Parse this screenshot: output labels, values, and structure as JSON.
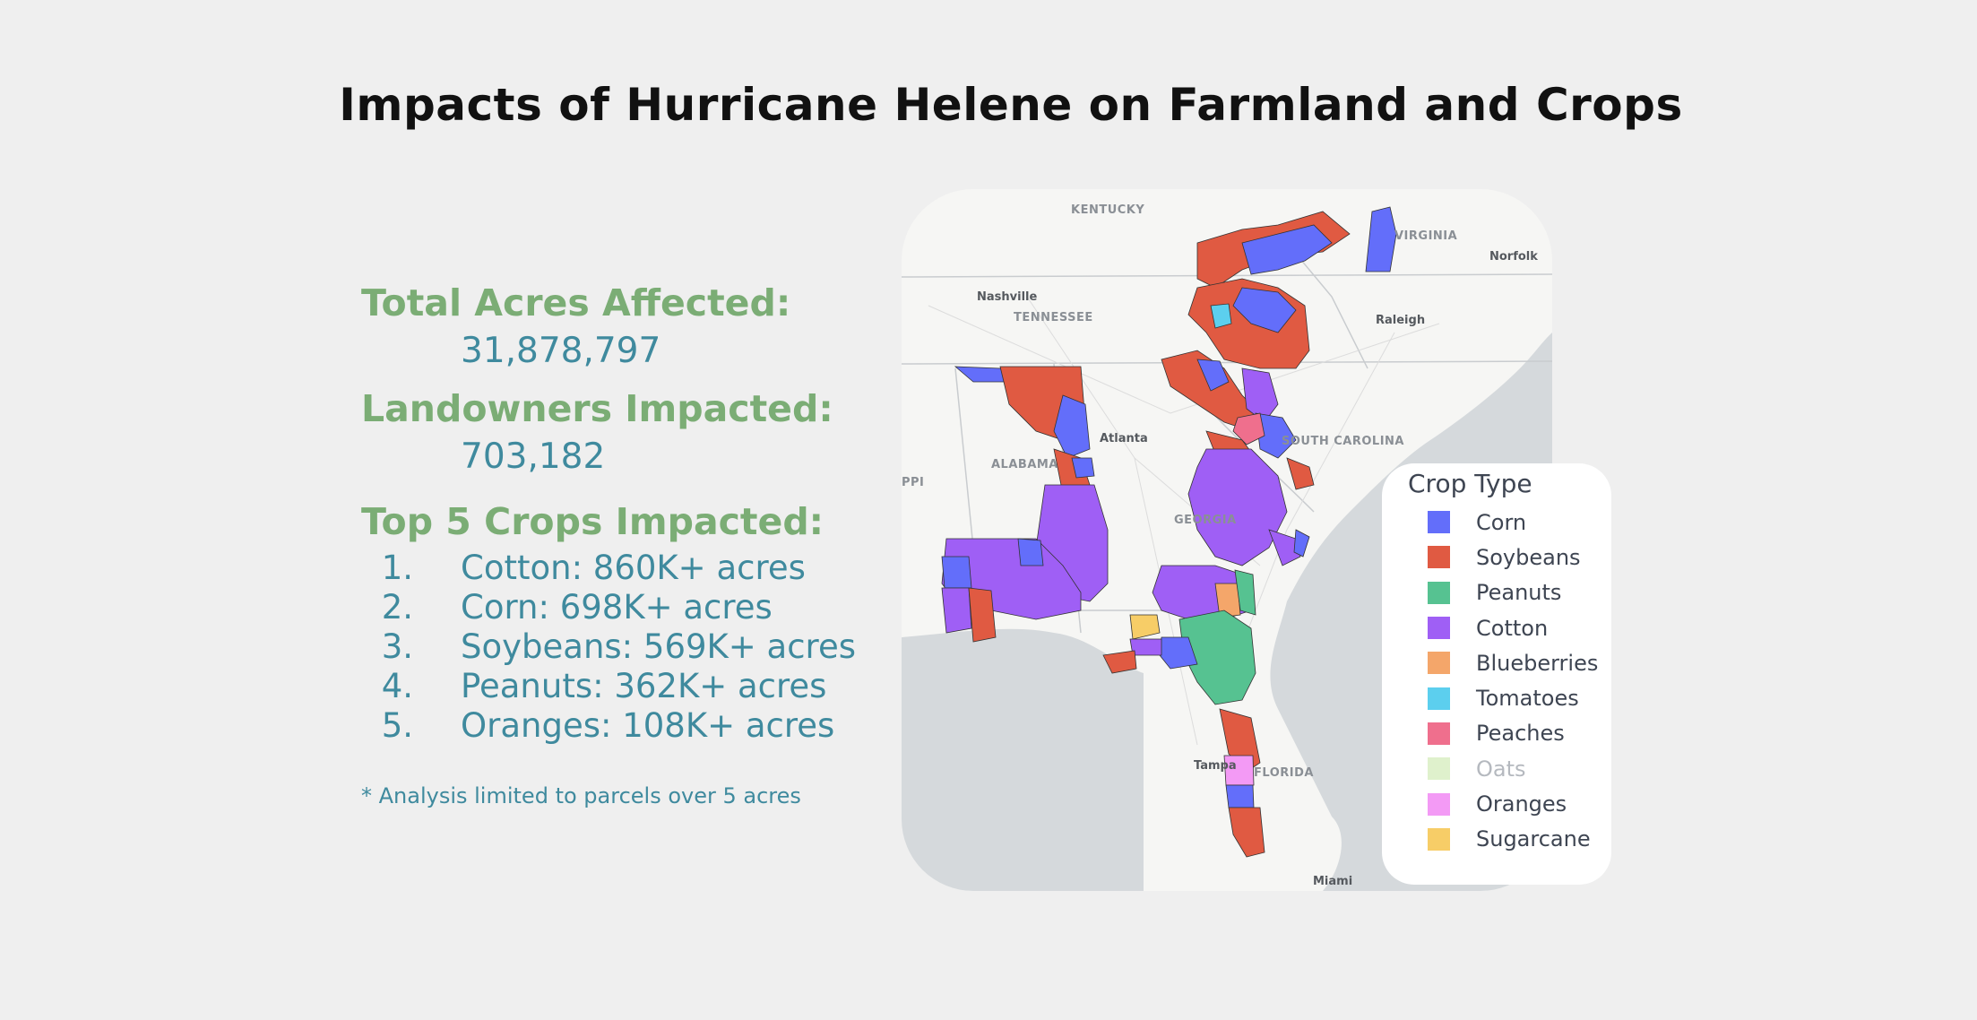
{
  "title": "Impacts of Hurricane Helene on Farmland and Crops",
  "stats": {
    "total_acres_label": "Total Acres Affected:",
    "total_acres_value": "31,878,797",
    "landowners_label": "Landowners Impacted:",
    "landowners_value": "703,182",
    "top_crops_label": "Top 5 Crops Impacted:",
    "top_crops": [
      {
        "num": "1.",
        "text": "Cotton: 860K+ acres"
      },
      {
        "num": "2.",
        "text": "Corn: 698K+ acres"
      },
      {
        "num": "3.",
        "text": "Soybeans: 569K+ acres"
      },
      {
        "num": "4.",
        "text": "Peanuts: 362K+ acres"
      },
      {
        "num": "5.",
        "text": "Oranges: 108K+ acres"
      }
    ],
    "footnote": "* Analysis limited to parcels over 5 acres"
  },
  "map": {
    "states": {
      "kentucky": "KENTUCKY",
      "virginia": "VIRGINIA",
      "tennessee": "TENNESSEE",
      "alabama": "ALABAMA",
      "georgia": "GEORGIA",
      "south_carolina": "SOUTH CAROLINA",
      "florida": "FLORIDA",
      "mississippi_partial": "PPI"
    },
    "cities": {
      "nashville": "Nashville",
      "norfolk": "Norfolk",
      "raleigh": "Raleigh",
      "atlanta": "Atlanta",
      "tampa": "Tampa",
      "miami": "Miami"
    }
  },
  "legend": {
    "title": "Crop Type",
    "items": [
      {
        "label": "Corn",
        "color": "#636efa",
        "dim": false
      },
      {
        "label": "Soybeans",
        "color": "#e05a42",
        "dim": false
      },
      {
        "label": "Peanuts",
        "color": "#56c291",
        "dim": false
      },
      {
        "label": "Cotton",
        "color": "#9f5ff5",
        "dim": false
      },
      {
        "label": "Blueberries",
        "color": "#f4a66a",
        "dim": false
      },
      {
        "label": "Tomatoes",
        "color": "#5ccfee",
        "dim": false
      },
      {
        "label": "Peaches",
        "color": "#ef6f8d",
        "dim": false
      },
      {
        "label": "Oats",
        "color": "#dff1cc",
        "dim": true
      },
      {
        "label": "Oranges",
        "color": "#f39af5",
        "dim": false
      },
      {
        "label": "Sugarcane",
        "color": "#f7cd67",
        "dim": false
      }
    ]
  }
}
